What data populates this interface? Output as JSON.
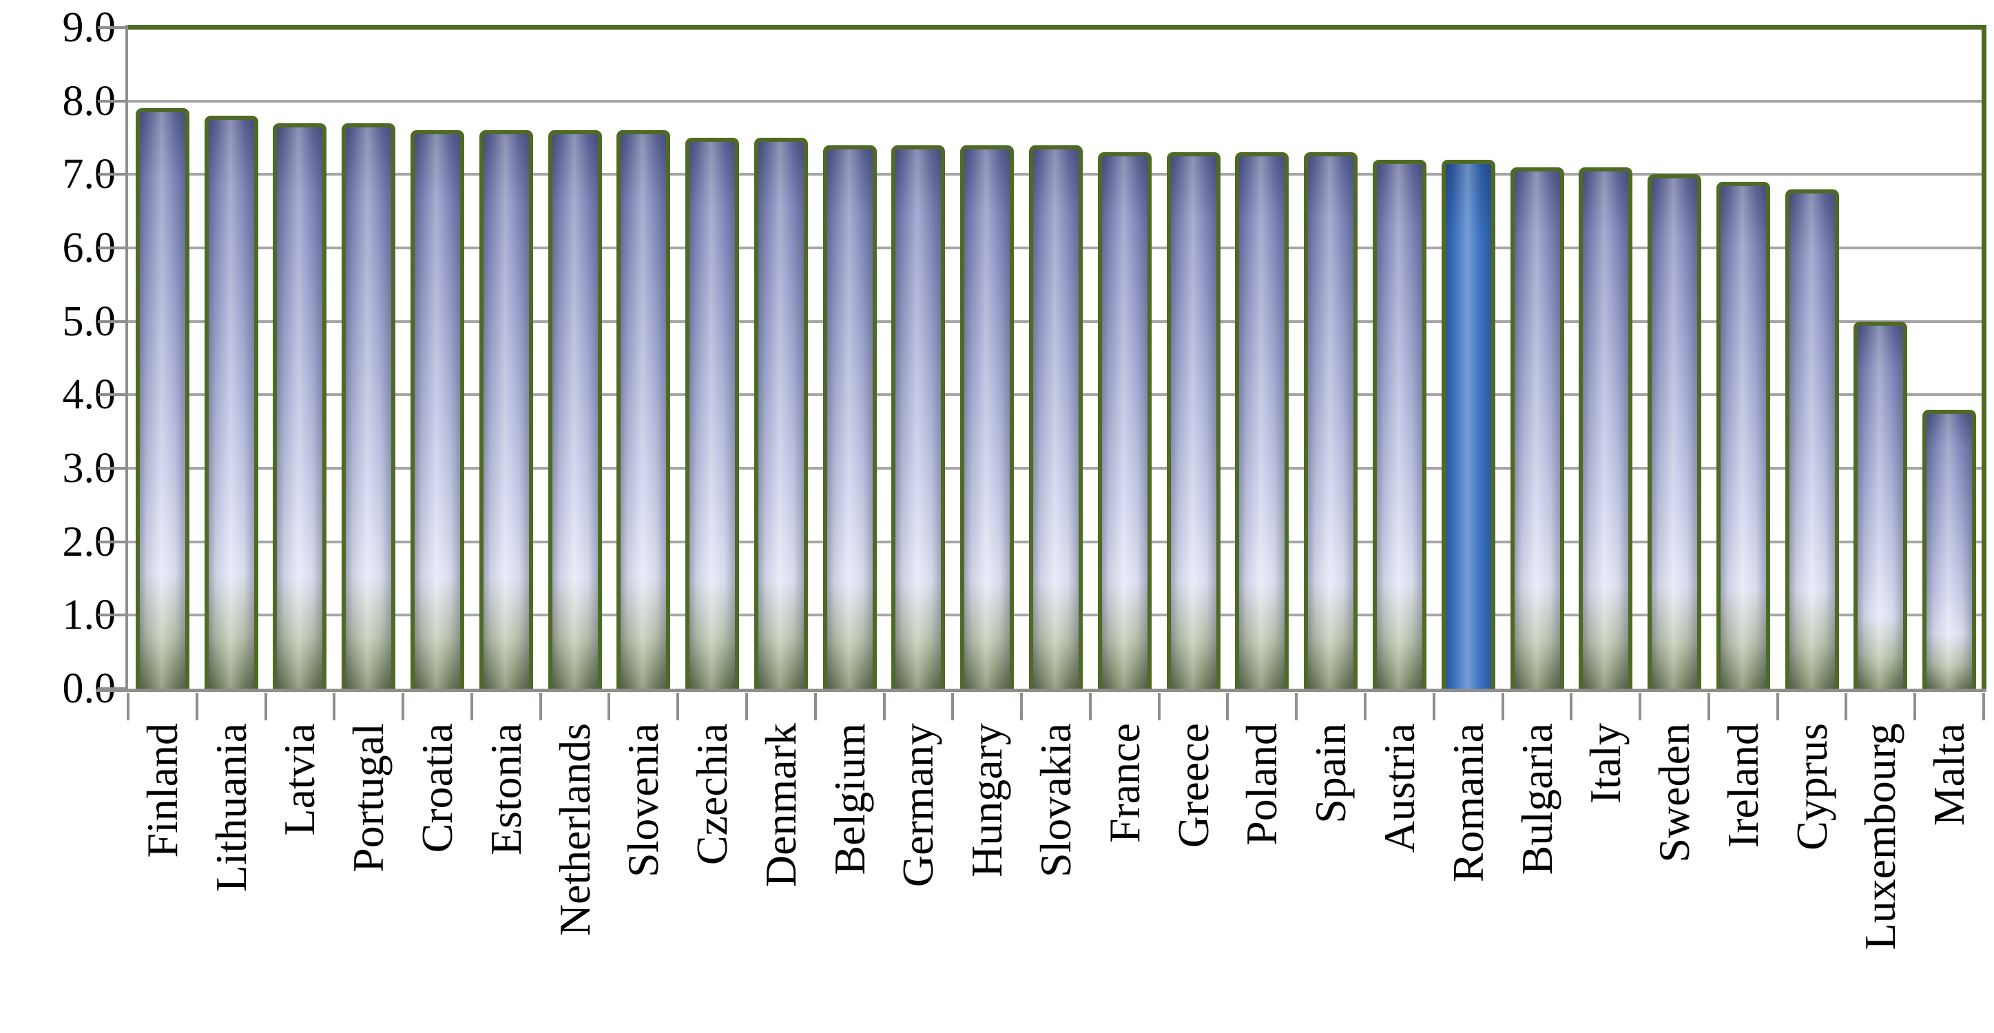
{
  "chart_data": {
    "type": "bar",
    "categories": [
      "Finland",
      "Lithuania",
      "Latvia",
      "Portugal",
      "Croatia",
      "Estonia",
      "Netherlands",
      "Slovenia",
      "Czechia",
      "Denmark",
      "Belgium",
      "Germany",
      "Hungary",
      "Slovakia",
      "France",
      "Greece",
      "Poland",
      "Spain",
      "Austria",
      "Romania",
      "Bulgaria",
      "Italy",
      "Sweden",
      "Ireland",
      "Cyprus",
      "Luxembourg",
      "Malta"
    ],
    "values": [
      7.9,
      7.8,
      7.7,
      7.7,
      7.6,
      7.6,
      7.6,
      7.6,
      7.5,
      7.5,
      7.4,
      7.4,
      7.4,
      7.4,
      7.3,
      7.3,
      7.3,
      7.3,
      7.2,
      7.2,
      7.1,
      7.1,
      7.0,
      6.9,
      6.8,
      5.0,
      3.8
    ],
    "highlight": {
      "category": "Romania",
      "index": 19
    },
    "ylim": [
      0,
      9
    ],
    "ytick_step": 1.0,
    "ytick_labels": [
      "0.0",
      "1.0",
      "2.0",
      "3.0",
      "4.0",
      "5.0",
      "6.0",
      "7.0",
      "8.0",
      "9.0"
    ],
    "grid": true,
    "legend": null,
    "xlabel": "",
    "ylabel": ""
  },
  "colors": {
    "bar_border": "#4e6a24",
    "bar_top": "#5d6396",
    "bar_upper": "#8289bd",
    "bar_mid": "#aab1d8",
    "bar_light": "#ccd1ec",
    "bar_lightest": "#e2e6f6",
    "bar_green_light": "#b9c3ab",
    "bar_green": "#6e7c56",
    "highlight_fill": "#3a74c8",
    "highlight_top": "#2d5ca4",
    "gridline": "#a6a6a6",
    "axis": "#8f8f8f",
    "tick": "#8f8f8f",
    "plot_border": "#4e6a24",
    "text": "#000000",
    "background": "#ffffff"
  }
}
